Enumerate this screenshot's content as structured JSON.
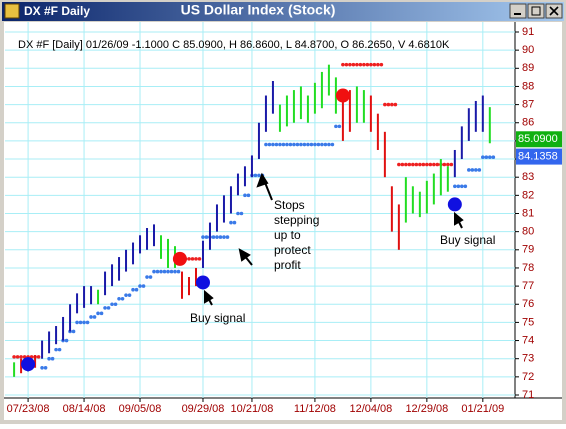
{
  "chart_data": {
    "type": "ohlc",
    "window_label": "DX #F Daily",
    "title": "US Dollar Index (Stock)",
    "info": "DX #F [Daily] 01/26/09 -1.1000 C 85.0900, H 86.8600, L 84.8700, O 86.2650, V 4.6810K",
    "ylim": [
      71,
      91
    ],
    "yticks": [
      71,
      72,
      73,
      74,
      75,
      76,
      77,
      78,
      79,
      80,
      81,
      82,
      83,
      84,
      85,
      86,
      87,
      88,
      89,
      90,
      91
    ],
    "xlim": [
      -1.3,
      71.6
    ],
    "xticks": [
      {
        "value": 2,
        "label": "07/23/08"
      },
      {
        "value": 10,
        "label": "08/14/08"
      },
      {
        "value": 18,
        "label": "09/05/08"
      },
      {
        "value": 27,
        "label": "09/29/08"
      },
      {
        "value": 34,
        "label": "10/21/08"
      },
      {
        "value": 43,
        "label": "11/12/08"
      },
      {
        "value": 51,
        "label": "12/04/08"
      },
      {
        "value": 59,
        "label": "12/29/08"
      },
      {
        "value": 67,
        "label": "01/21/09"
      }
    ],
    "grid": true,
    "colors": {
      "b": "#1a1aa8",
      "g": "#22dd22",
      "r": "#e01010"
    },
    "high": [
      72.8,
      73.0,
      73.0,
      73.2,
      74.0,
      74.5,
      74.8,
      75.3,
      76.0,
      76.6,
      77.0,
      77.0,
      76.8,
      77.8,
      78.2,
      78.6,
      79.0,
      79.4,
      79.8,
      80.2,
      80.4,
      79.8,
      79.6,
      79.2,
      77.8,
      77.5,
      78.0,
      79.5,
      80.5,
      81.5,
      82.0,
      82.5,
      83.2,
      83.6,
      84.2,
      86.0,
      87.5,
      88.3,
      87.0,
      87.5,
      87.8,
      88.0,
      87.5,
      88.2,
      88.8,
      89.2,
      88.5,
      87.5,
      87.8,
      88.0,
      87.8,
      87.5,
      86.5,
      85.5,
      82.5,
      81.5,
      83.0,
      82.5,
      82.2,
      82.8,
      83.2,
      84.0,
      83.6,
      84.5,
      85.8,
      86.8,
      87.2,
      87.5,
      86.86
    ],
    "low": [
      72.0,
      72.2,
      72.3,
      72.5,
      73.0,
      73.3,
      73.8,
      74.0,
      74.5,
      75.5,
      75.8,
      76.0,
      76.0,
      76.5,
      77.0,
      77.3,
      77.8,
      78.2,
      78.8,
      79.0,
      79.2,
      78.5,
      78.0,
      78.0,
      76.3,
      76.5,
      77.0,
      78.0,
      79.0,
      80.0,
      80.5,
      81.0,
      82.0,
      82.5,
      83.0,
      84.0,
      85.5,
      86.5,
      85.5,
      85.8,
      86.0,
      86.2,
      86.0,
      86.5,
      86.8,
      87.5,
      86.5,
      85.0,
      85.5,
      86.0,
      86.0,
      85.5,
      84.5,
      83.0,
      80.0,
      79.0,
      80.5,
      81.0,
      80.8,
      81.0,
      81.5,
      82.0,
      82.2,
      83.0,
      84.0,
      85.0,
      85.5,
      85.5,
      84.87
    ],
    "bar_colors": [
      "g",
      "r",
      "b",
      "r",
      "b",
      "b",
      "b",
      "b",
      "b",
      "b",
      "b",
      "b",
      "g",
      "b",
      "b",
      "b",
      "b",
      "b",
      "b",
      "b",
      "b",
      "g",
      "g",
      "g",
      "r",
      "r",
      "r",
      "b",
      "b",
      "b",
      "b",
      "b",
      "b",
      "b",
      "b",
      "b",
      "b",
      "b",
      "g",
      "g",
      "g",
      "g",
      "g",
      "g",
      "g",
      "g",
      "g",
      "r",
      "r",
      "g",
      "g",
      "r",
      "r",
      "r",
      "r",
      "r",
      "g",
      "g",
      "g",
      "g",
      "g",
      "g",
      "g",
      "b",
      "b",
      "b",
      "b",
      "b",
      "g"
    ],
    "stops": [
      73.1,
      73.1,
      73.1,
      73.1,
      72.5,
      73.0,
      73.5,
      74.0,
      74.5,
      75.0,
      75.0,
      75.3,
      75.5,
      75.8,
      76.0,
      76.3,
      76.5,
      76.8,
      77.0,
      77.5,
      77.8,
      77.8,
      77.8,
      77.8,
      78.5,
      78.5,
      78.5,
      79.7,
      79.7,
      79.7,
      79.7,
      80.5,
      81.0,
      82.0,
      83.1,
      83.1,
      84.8,
      84.8,
      84.8,
      84.8,
      84.8,
      84.8,
      84.8,
      84.8,
      84.8,
      84.8,
      85.8,
      89.2,
      89.2,
      89.2,
      89.2,
      89.2,
      89.2,
      87.0,
      87.0,
      83.7,
      83.7,
      83.7,
      83.7,
      83.7,
      83.7,
      83.7,
      83.7,
      82.5,
      82.5,
      83.4,
      83.4,
      84.1,
      84.1
    ],
    "stop_colors": [
      "r",
      "r",
      "r",
      "r",
      "b",
      "b",
      "b",
      "b",
      "b",
      "b",
      "b",
      "b",
      "b",
      "b",
      "b",
      "b",
      "b",
      "b",
      "b",
      "b",
      "b",
      "b",
      "b",
      "b",
      "r",
      "r",
      "r",
      "b",
      "b",
      "b",
      "b",
      "b",
      "b",
      "b",
      "b",
      "b",
      "b",
      "b",
      "b",
      "b",
      "b",
      "b",
      "b",
      "b",
      "b",
      "b",
      "b",
      "r",
      "r",
      "r",
      "r",
      "r",
      "r",
      "r",
      "r",
      "r",
      "r",
      "r",
      "r",
      "r",
      "r",
      "r",
      "r",
      "b",
      "b",
      "b",
      "b",
      "b",
      "b"
    ],
    "buy_signals": {
      "x": [
        2,
        27,
        63
      ],
      "values": [
        72.7,
        77.2,
        81.5
      ],
      "color": "#1010e0"
    },
    "sell_signals": {
      "x": [
        23.7,
        47
      ],
      "values": [
        78.5,
        87.5
      ],
      "color": "#f01010"
    },
    "price_labels": [
      {
        "value": 85.09,
        "label": "85.0900",
        "color": "#10b010"
      },
      {
        "value": 84.1358,
        "label": "84.1358",
        "color": "#3366ee"
      }
    ],
    "annotations": [
      {
        "lines": [
          "Stops",
          "stepping",
          "up to",
          "protect",
          "profit"
        ]
      },
      {
        "lines": [
          "Buy signal"
        ]
      },
      {
        "lines": [
          "Buy signal"
        ]
      }
    ]
  }
}
